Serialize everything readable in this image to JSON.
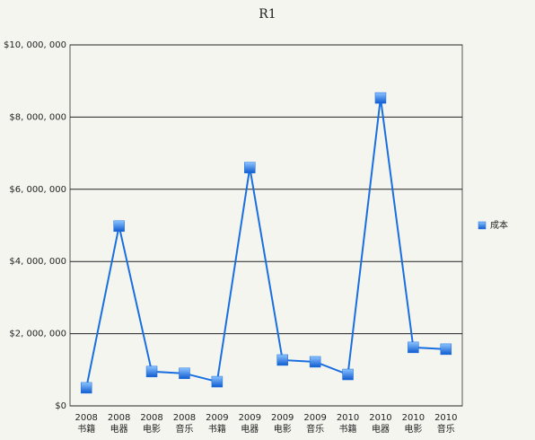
{
  "chart_data": {
    "type": "line",
    "title": "R1",
    "categories": [
      [
        "2008",
        "书籍"
      ],
      [
        "2008",
        "电器"
      ],
      [
        "2008",
        "电影"
      ],
      [
        "2008",
        "音乐"
      ],
      [
        "2009",
        "书籍"
      ],
      [
        "2009",
        "电器"
      ],
      [
        "2009",
        "电影"
      ],
      [
        "2009",
        "音乐"
      ],
      [
        "2010",
        "书籍"
      ],
      [
        "2010",
        "电器"
      ],
      [
        "2010",
        "电影"
      ],
      [
        "2010",
        "音乐"
      ]
    ],
    "series": [
      {
        "name": "成本",
        "color": "#1a6fe0",
        "values": [
          500000,
          4980000,
          950000,
          900000,
          670000,
          6600000,
          1270000,
          1220000,
          870000,
          8530000,
          1620000,
          1570000
        ]
      }
    ],
    "ylim": [
      0,
      10000000
    ],
    "yticks": [
      {
        "value": 0,
        "label": "$0"
      },
      {
        "value": 2000000,
        "label": "$2, 000, 000"
      },
      {
        "value": 4000000,
        "label": "$4, 000, 000"
      },
      {
        "value": 6000000,
        "label": "$6, 000, 000"
      },
      {
        "value": 8000000,
        "label": "$8, 000, 000"
      },
      {
        "value": 10000000,
        "label": "$10, 000, 000"
      }
    ],
    "grid": true,
    "legend": "right"
  }
}
